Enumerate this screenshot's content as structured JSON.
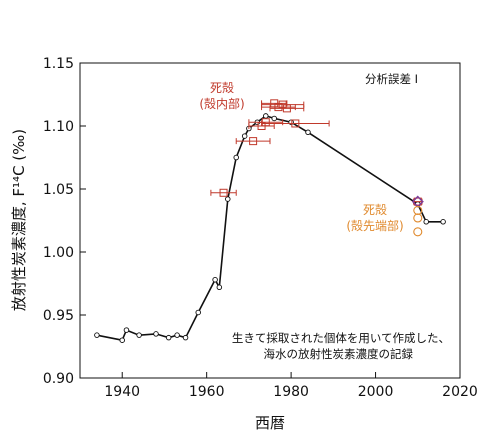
{
  "chart_data": {
    "type": "scatter",
    "xlabel": "西暦",
    "ylabel": "放射性炭素濃度, F¹⁴C (‰)",
    "xlim": [
      1930,
      2020
    ],
    "ylim": [
      0.9,
      1.15
    ],
    "x_ticks": [
      "1940",
      "1960",
      "1980",
      "2000",
      "2020"
    ],
    "y_ticks": [
      "0.90",
      "0.95",
      "1.00",
      "1.05",
      "1.10",
      "1.15"
    ],
    "legend_error": "分析誤差 I",
    "annotation_line1": "生きて採取された個体を用いて作成した、",
    "annotation_line2": "海水の放射性炭素濃度の記録",
    "dead_inner_label_1": "死殻",
    "dead_inner_label_2": "(殻内部)",
    "dead_outer_label_1": "死殻",
    "dead_outer_label_2": "(殻先端部)",
    "series": [
      {
        "marker": "circle-line",
        "color": "#111111",
        "points": [
          [
            1934,
            0.934
          ],
          [
            1940,
            0.93
          ],
          [
            1941,
            0.938
          ],
          [
            1944,
            0.934
          ],
          [
            1948,
            0.935
          ],
          [
            1951,
            0.932
          ],
          [
            1953,
            0.934
          ],
          [
            1955,
            0.932
          ],
          [
            1958,
            0.952
          ],
          [
            1962,
            0.978
          ],
          [
            1963,
            0.972
          ],
          [
            1965,
            1.042
          ],
          [
            1967,
            1.075
          ],
          [
            1969,
            1.092
          ],
          [
            1970,
            1.098
          ],
          [
            1972,
            1.103
          ],
          [
            1974,
            1.108
          ],
          [
            1976,
            1.106
          ],
          [
            1980,
            1.103
          ],
          [
            1984,
            1.095
          ],
          [
            2010,
            1.038
          ],
          [
            2012,
            1.024
          ],
          [
            2016,
            1.024
          ]
        ]
      },
      {
        "marker": "square-with-xerror",
        "color": "#c0392b",
        "points": [
          {
            "x": 1964,
            "y": 1.047,
            "xerr": 3
          },
          {
            "x": 1971,
            "y": 1.088,
            "xerr": 4
          },
          {
            "x": 1973,
            "y": 1.1,
            "xerr": 3
          },
          {
            "x": 1974,
            "y": 1.103,
            "xerr": 4
          },
          {
            "x": 1976,
            "y": 1.118,
            "xerr": 3
          },
          {
            "x": 1977,
            "y": 1.115,
            "xerr": 4
          },
          {
            "x": 1978,
            "y": 1.117,
            "xerr": 5
          },
          {
            "x": 1979,
            "y": 1.114,
            "xerr": 4
          },
          {
            "x": 1981,
            "y": 1.102,
            "xerr": 8
          },
          {
            "x": 2010,
            "y": 1.04,
            "xerr": 1
          }
        ]
      },
      {
        "marker": "circle-open",
        "color": "#e08a2e",
        "points": [
          [
            2010,
            1.016
          ],
          [
            2010,
            1.027
          ],
          [
            2010,
            1.033
          ]
        ]
      }
    ],
    "highlight_diamond": {
      "x": 2010,
      "y": 1.04,
      "color": "#7d3c98"
    }
  }
}
